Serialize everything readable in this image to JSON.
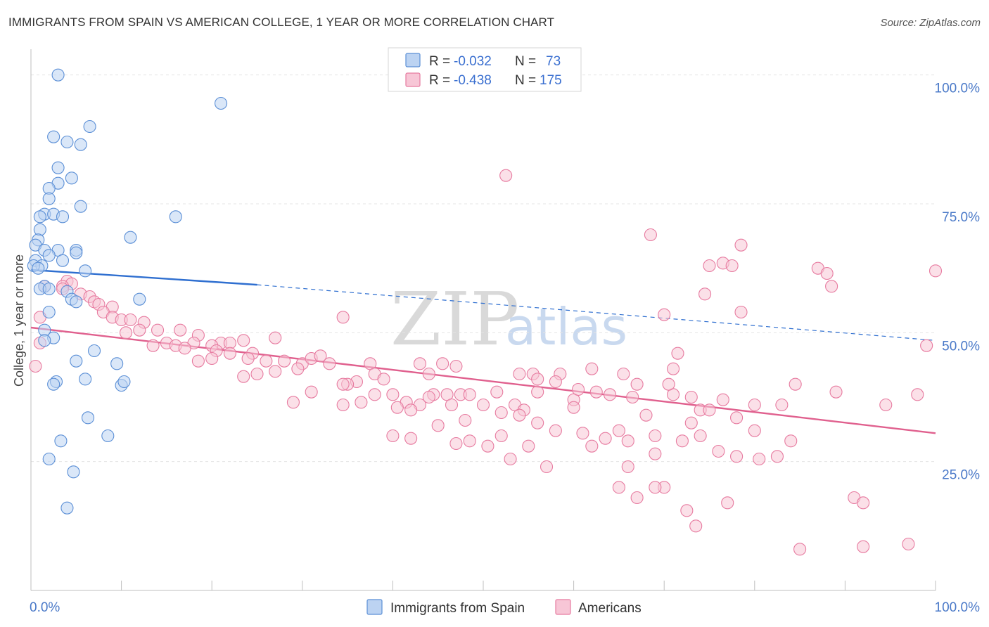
{
  "header": {
    "title": "IMMIGRANTS FROM SPAIN VS AMERICAN COLLEGE, 1 YEAR OR MORE CORRELATION CHART",
    "source": "Source: ZipAtlas.com"
  },
  "watermark": {
    "zip": "ZIP",
    "atlas": "atlas"
  },
  "colors": {
    "blue": "#5b8fd6",
    "blue_fill": "#bcd3f2",
    "blue_line": "#2f6fd0",
    "pink": "#e77ba0",
    "pink_fill": "#f7c6d6",
    "pink_line": "#e0608e",
    "grid": "#e4e4e4"
  },
  "legend": {
    "rows": [
      {
        "r_label": "R = ",
        "r_value": "-0.032",
        "n_label": "N = ",
        "n_value": "73"
      },
      {
        "r_label": "R = ",
        "r_value": "-0.438",
        "n_label": "N = ",
        "n_value": "175"
      }
    ]
  },
  "chart_data": {
    "type": "scatter",
    "title": "IMMIGRANTS FROM SPAIN VS AMERICAN COLLEGE, 1 YEAR OR MORE CORRELATION CHART",
    "xlabel": "",
    "ylabel": "College, 1 year or more",
    "xlim": [
      0,
      100
    ],
    "ylim": [
      0,
      105
    ],
    "x_tick_labels": [
      "0.0%",
      "100.0%"
    ],
    "y_tick_labels": [
      "25.0%",
      "50.0%",
      "75.0%",
      "100.0%"
    ],
    "y_ticks": [
      25,
      50,
      75,
      100
    ],
    "series": [
      {
        "name": "Immigrants from Spain",
        "color": "blue",
        "trend": {
          "x0": 0,
          "y0": 62.2,
          "x1": 25,
          "y1": 59.3,
          "dash_to_x": 100,
          "dash_to_y": 48.5
        },
        "points": [
          [
            3,
            100
          ],
          [
            21,
            94.5
          ],
          [
            6.5,
            90
          ],
          [
            2.5,
            88
          ],
          [
            4,
            87
          ],
          [
            5.5,
            86.5
          ],
          [
            3,
            82
          ],
          [
            4.5,
            80
          ],
          [
            3,
            79
          ],
          [
            2,
            78
          ],
          [
            2,
            76
          ],
          [
            5.5,
            74.5
          ],
          [
            1.5,
            73
          ],
          [
            2.5,
            73
          ],
          [
            3.5,
            72.5
          ],
          [
            16,
            72.5
          ],
          [
            1,
            72.5
          ],
          [
            1,
            70
          ],
          [
            11,
            68.5
          ],
          [
            0.8,
            68
          ],
          [
            0.5,
            67
          ],
          [
            1.5,
            66
          ],
          [
            3,
            66
          ],
          [
            5,
            66
          ],
          [
            5,
            65.5
          ],
          [
            2,
            65
          ],
          [
            3.5,
            64
          ],
          [
            0.5,
            64
          ],
          [
            1.2,
            63
          ],
          [
            0.3,
            63
          ],
          [
            0.8,
            62.5
          ],
          [
            6,
            62
          ],
          [
            1.5,
            59
          ],
          [
            1,
            58.5
          ],
          [
            2,
            58.5
          ],
          [
            4,
            58
          ],
          [
            12,
            56.5
          ],
          [
            4.5,
            56.5
          ],
          [
            5,
            56
          ],
          [
            2,
            54
          ],
          [
            1.5,
            50.5
          ],
          [
            2.5,
            49
          ],
          [
            1.5,
            48.5
          ],
          [
            7,
            46.5
          ],
          [
            5,
            44.5
          ],
          [
            9.5,
            44
          ],
          [
            6,
            41
          ],
          [
            2.8,
            40.5
          ],
          [
            2.5,
            40
          ],
          [
            10,
            39.8
          ],
          [
            10.3,
            40.5
          ],
          [
            6.3,
            33.5
          ],
          [
            8.5,
            30
          ],
          [
            3.3,
            29
          ],
          [
            2,
            25.5
          ],
          [
            4.7,
            23
          ],
          [
            4,
            16
          ]
        ]
      },
      {
        "name": "Americans",
        "color": "pink",
        "trend": {
          "x0": 0,
          "y0": 51.0,
          "x1": 100,
          "y1": 30.5
        },
        "points": [
          [
            52.5,
            80.5
          ],
          [
            68.5,
            69
          ],
          [
            78.5,
            67
          ],
          [
            76.5,
            63.5
          ],
          [
            77.5,
            63
          ],
          [
            75,
            63
          ],
          [
            87,
            62.5
          ],
          [
            100,
            62
          ],
          [
            88,
            61.5
          ],
          [
            4,
            60
          ],
          [
            4.5,
            59.5
          ],
          [
            3.5,
            59
          ],
          [
            1.5,
            59
          ],
          [
            3.5,
            58.5
          ],
          [
            5.5,
            57.5
          ],
          [
            6.5,
            57
          ],
          [
            7,
            56
          ],
          [
            7.5,
            55.5
          ],
          [
            9,
            55
          ],
          [
            88.5,
            59
          ],
          [
            74.5,
            57.5
          ],
          [
            8,
            54
          ],
          [
            9,
            53
          ],
          [
            10,
            52.5
          ],
          [
            11,
            52.5
          ],
          [
            12.5,
            52
          ],
          [
            70,
            53.5
          ],
          [
            34.5,
            53
          ],
          [
            78.5,
            54
          ],
          [
            12,
            50.5
          ],
          [
            10.5,
            50
          ],
          [
            14,
            50.5
          ],
          [
            16.5,
            50.5
          ],
          [
            18.5,
            49.5
          ],
          [
            21,
            48
          ],
          [
            27,
            49
          ],
          [
            23.5,
            48.5
          ],
          [
            22,
            48
          ],
          [
            20,
            47.5
          ],
          [
            18,
            48
          ],
          [
            15,
            48
          ],
          [
            13.5,
            47.5
          ],
          [
            16,
            47.5
          ],
          [
            17,
            47
          ],
          [
            20.5,
            46.5
          ],
          [
            22,
            46
          ],
          [
            24.5,
            46
          ],
          [
            24,
            45
          ],
          [
            26,
            44.5
          ],
          [
            28,
            44.5
          ],
          [
            30,
            44
          ],
          [
            31,
            45
          ],
          [
            32,
            45.5
          ],
          [
            33,
            44
          ],
          [
            29.5,
            43
          ],
          [
            27,
            42.5
          ],
          [
            25,
            42
          ],
          [
            23.5,
            41.5
          ],
          [
            20,
            45
          ],
          [
            18.5,
            44.5
          ],
          [
            37.5,
            44
          ],
          [
            43,
            44
          ],
          [
            47,
            43.5
          ],
          [
            45.5,
            44
          ],
          [
            55.5,
            42
          ],
          [
            58.5,
            42
          ],
          [
            62,
            43
          ],
          [
            56,
            41
          ],
          [
            54,
            42
          ],
          [
            44,
            42
          ],
          [
            38,
            42
          ],
          [
            36,
            40.5
          ],
          [
            35,
            40
          ],
          [
            34.5,
            40
          ],
          [
            39,
            41
          ],
          [
            40,
            38
          ],
          [
            41.5,
            36.5
          ],
          [
            43,
            36
          ],
          [
            44.5,
            38
          ],
          [
            46,
            38
          ],
          [
            47.5,
            38
          ],
          [
            48.5,
            38
          ],
          [
            51.5,
            38.5
          ],
          [
            53.5,
            36
          ],
          [
            54.5,
            35
          ],
          [
            56,
            38.5
          ],
          [
            58,
            40.5
          ],
          [
            60,
            37
          ],
          [
            60.5,
            39
          ],
          [
            62.5,
            38.5
          ],
          [
            64,
            38
          ],
          [
            66.5,
            37.5
          ],
          [
            68,
            34
          ],
          [
            71,
            38
          ],
          [
            73,
            37.5
          ],
          [
            74,
            35
          ],
          [
            76.5,
            37
          ],
          [
            80,
            36
          ],
          [
            84.5,
            40
          ],
          [
            89,
            38.5
          ],
          [
            29,
            36.5
          ],
          [
            31,
            38.5
          ],
          [
            34.5,
            36
          ],
          [
            36.5,
            36.5
          ],
          [
            38,
            38
          ],
          [
            40.5,
            35.5
          ],
          [
            42,
            35
          ],
          [
            44,
            37.5
          ],
          [
            46.5,
            36
          ],
          [
            48,
            33
          ],
          [
            50,
            36
          ],
          [
            52,
            34.5
          ],
          [
            54,
            34
          ],
          [
            56,
            32.5
          ],
          [
            58,
            31
          ],
          [
            60,
            35.5
          ],
          [
            61,
            30.5
          ],
          [
            63.5,
            29.5
          ],
          [
            65,
            31
          ],
          [
            66,
            29
          ],
          [
            69,
            30
          ],
          [
            72,
            29
          ],
          [
            74,
            30
          ],
          [
            76,
            27
          ],
          [
            78,
            26
          ],
          [
            80.5,
            25.5
          ],
          [
            82.5,
            26
          ],
          [
            84,
            29
          ],
          [
            70.5,
            40
          ],
          [
            73,
            32.5
          ],
          [
            75,
            35
          ],
          [
            78,
            33.5
          ],
          [
            80,
            31
          ],
          [
            83,
            36
          ],
          [
            40,
            30
          ],
          [
            42,
            29.5
          ],
          [
            45,
            32
          ],
          [
            47,
            28.5
          ],
          [
            48.5,
            29
          ],
          [
            50.5,
            28
          ],
          [
            52,
            30
          ],
          [
            53,
            25.5
          ],
          [
            55,
            28
          ],
          [
            57,
            24
          ],
          [
            62,
            28
          ],
          [
            66,
            24
          ],
          [
            69,
            26.5
          ],
          [
            70,
            20
          ],
          [
            65,
            20
          ],
          [
            67,
            18
          ],
          [
            69,
            20
          ],
          [
            72.5,
            15.5
          ],
          [
            73.5,
            12.5
          ],
          [
            77,
            17
          ],
          [
            85,
            8
          ],
          [
            92,
            8.5
          ],
          [
            97,
            9
          ],
          [
            91,
            18
          ],
          [
            92,
            17
          ],
          [
            99,
            47.5
          ],
          [
            98,
            38
          ],
          [
            94.5,
            36
          ],
          [
            71.5,
            46
          ],
          [
            71,
            43
          ],
          [
            65.5,
            42
          ],
          [
            67,
            40
          ],
          [
            1,
            53
          ],
          [
            1,
            48
          ],
          [
            0.5,
            43.5
          ]
        ]
      }
    ]
  },
  "bottom_legend": {
    "items": [
      {
        "label": "Immigrants from Spain",
        "color": "blue"
      },
      {
        "label": "Americans",
        "color": "pink"
      }
    ]
  }
}
